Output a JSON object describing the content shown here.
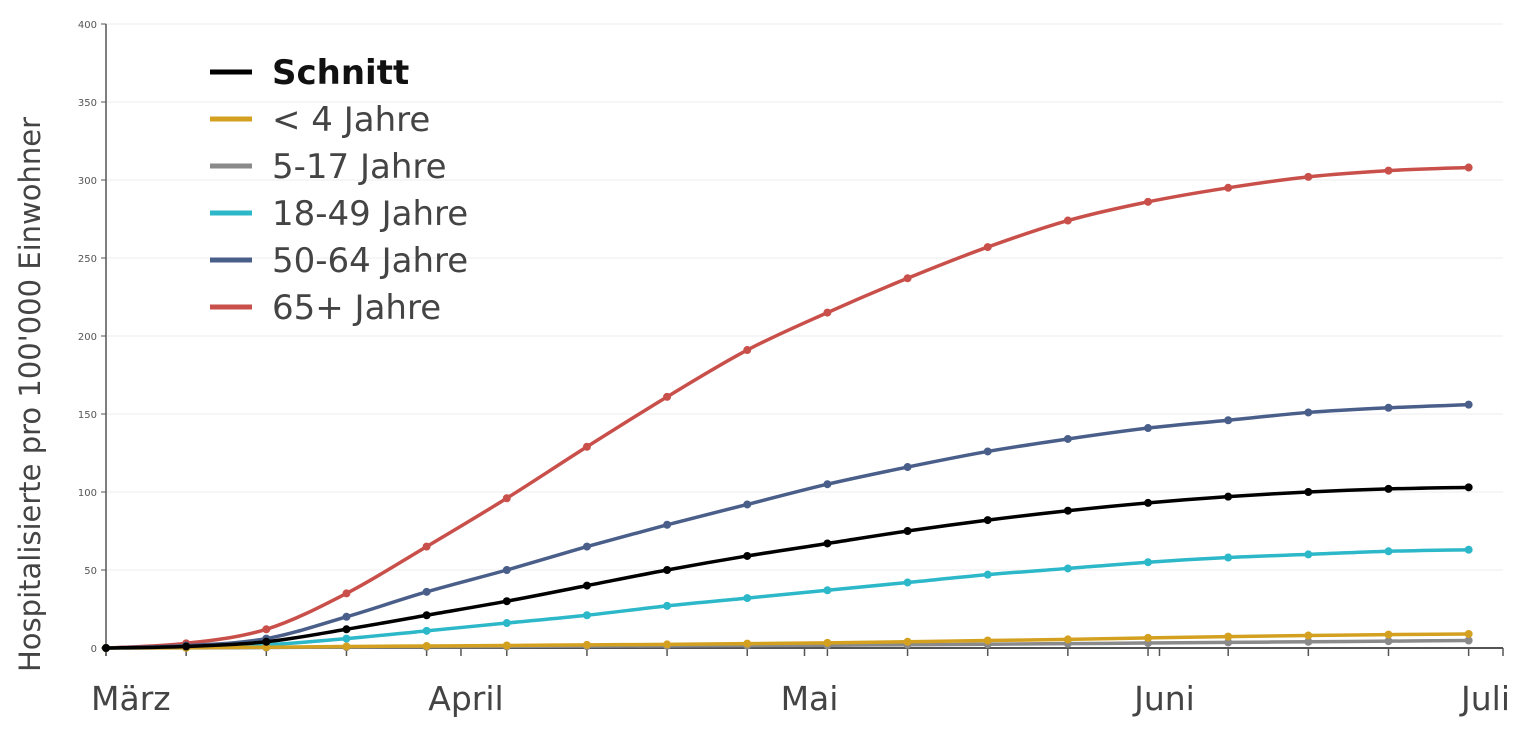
{
  "chart_data": {
    "type": "line",
    "title": "",
    "xlabel": "",
    "ylabel": "Hospitalisierte pro 100'000 Einwohner",
    "ylim": [
      0,
      400
    ],
    "yticks": [
      0,
      50,
      100,
      150,
      200,
      250,
      300,
      350,
      400
    ],
    "xticks": [
      "März",
      "April",
      "Mai",
      "Juni",
      "Juli"
    ],
    "x": [
      "2020-03-01",
      "2020-03-08",
      "2020-03-15",
      "2020-03-22",
      "2020-03-29",
      "2020-04-05",
      "2020-04-12",
      "2020-04-19",
      "2020-04-26",
      "2020-05-03",
      "2020-05-10",
      "2020-05-17",
      "2020-05-24",
      "2020-05-31",
      "2020-06-07",
      "2020-06-14",
      "2020-06-21",
      "2020-06-28"
    ],
    "grid": true,
    "legend_position": "top-left",
    "series": [
      {
        "name": "Schnitt",
        "color": "#000000",
        "bold": true,
        "values": [
          0,
          1,
          4,
          12,
          21,
          30,
          40,
          50,
          59,
          67,
          75,
          82,
          88,
          93,
          97,
          100,
          102,
          103
        ]
      },
      {
        "name": "< 4 Jahre",
        "color": "#d4a020",
        "bold": false,
        "values": [
          0,
          0.2,
          0.5,
          1,
          1.3,
          1.6,
          2,
          2.3,
          2.8,
          3.3,
          4,
          4.8,
          5.5,
          6.5,
          7.3,
          8,
          8.6,
          9
        ]
      },
      {
        "name": "5-17 Jahre",
        "color": "#8a8a8a",
        "bold": false,
        "values": [
          0,
          0.1,
          0.3,
          0.6,
          0.8,
          1,
          1.2,
          1.4,
          1.6,
          1.8,
          2.1,
          2.4,
          2.8,
          3.2,
          3.6,
          4,
          4.4,
          4.8
        ]
      },
      {
        "name": "18-49 Jahre",
        "color": "#2cb8c8",
        "bold": false,
        "values": [
          0,
          0.5,
          2,
          6,
          11,
          16,
          21,
          27,
          32,
          37,
          42,
          47,
          51,
          55,
          58,
          60,
          62,
          63
        ]
      },
      {
        "name": "50-64 Jahre",
        "color": "#4a5e8a",
        "bold": false,
        "values": [
          0,
          1.5,
          6,
          20,
          36,
          50,
          65,
          79,
          92,
          105,
          116,
          126,
          134,
          141,
          146,
          151,
          154,
          156
        ]
      },
      {
        "name": "65+ Jahre",
        "color": "#c9504a",
        "bold": false,
        "values": [
          0,
          3,
          12,
          35,
          65,
          96,
          129,
          161,
          191,
          215,
          237,
          257,
          274,
          286,
          295,
          302,
          306,
          308
        ]
      }
    ]
  }
}
